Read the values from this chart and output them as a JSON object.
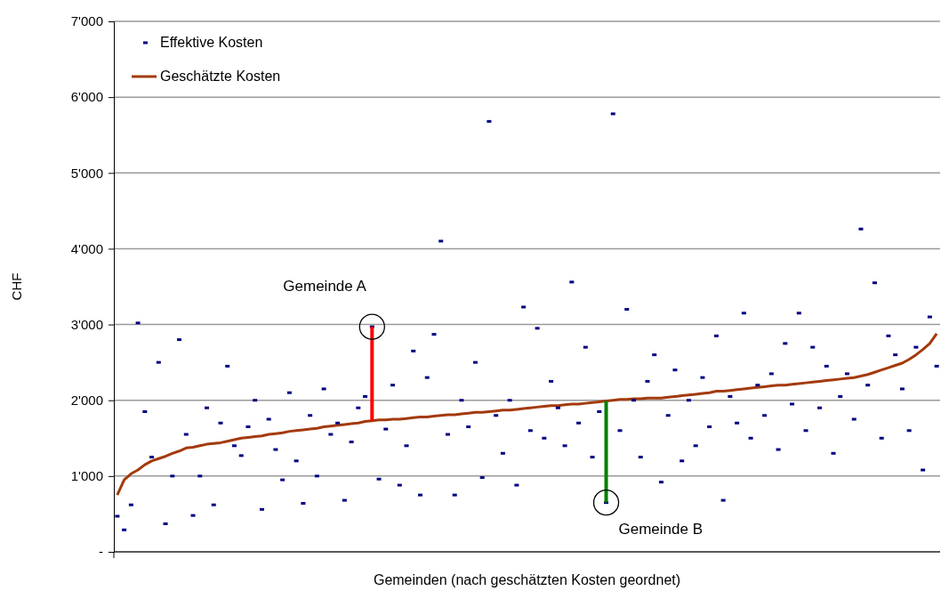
{
  "chart_data": {
    "type": "scatter",
    "xlabel": "Gemeinden (nach geschätzten Kosten geordnet)",
    "ylabel": "CHF",
    "categories": [
      null,
      null,
      null,
      null,
      null,
      null,
      null,
      null,
      null,
      null,
      null,
      null,
      null,
      null,
      null,
      null,
      null,
      null,
      null,
      null,
      null,
      null,
      null,
      null,
      null,
      null,
      null,
      null,
      null,
      null,
      null,
      null,
      null,
      null,
      null,
      null,
      null,
      null,
      null,
      null,
      null,
      null,
      null,
      null,
      null,
      null,
      null,
      null,
      null,
      null,
      null,
      null,
      null,
      null,
      null,
      null,
      null,
      null,
      null,
      null,
      null,
      null,
      null,
      null,
      null,
      null,
      null,
      null,
      null,
      null,
      null,
      null,
      null,
      null,
      null,
      null,
      null,
      null,
      null,
      null,
      null,
      null,
      null,
      null,
      null,
      null,
      null,
      null,
      null,
      null,
      null,
      null,
      null,
      null,
      null,
      null,
      null,
      null,
      null,
      null,
      null,
      null,
      null,
      null,
      null,
      null,
      null,
      null,
      null,
      null,
      null,
      null,
      null,
      null,
      null,
      null,
      null,
      null,
      null,
      null
    ],
    "ylim": [
      0,
      7000
    ],
    "yticks": [
      {
        "value": 0,
        "label": "-"
      },
      {
        "value": 1000,
        "label": "1'000"
      },
      {
        "value": 2000,
        "label": "2'000"
      },
      {
        "value": 3000,
        "label": "3'000"
      },
      {
        "value": 4000,
        "label": "4'000"
      },
      {
        "value": 5000,
        "label": "5'000"
      },
      {
        "value": 6000,
        "label": "6'000"
      },
      {
        "value": 7000,
        "label": "7'000"
      }
    ],
    "grid": "y",
    "legend": "top left",
    "tick_labels": "y",
    "marker": "square",
    "series": [
      {
        "name": "Effektive Kosten",
        "color": "#000080",
        "values": [
          470,
          290,
          620,
          3020,
          1850,
          1250,
          2500,
          370,
          1000,
          2800,
          1550,
          480,
          1000,
          1900,
          620,
          1700,
          2450,
          1400,
          1270,
          1650,
          2000,
          560,
          1750,
          1350,
          950,
          2100,
          1200,
          640,
          1800,
          1000,
          2150,
          1550,
          1700,
          680,
          1450,
          1900,
          2050,
          2970,
          960,
          1620,
          2200,
          880,
          1400,
          2650,
          750,
          2300,
          2870,
          4100,
          1550,
          750,
          2000,
          1650,
          2500,
          980,
          5680,
          1800,
          1300,
          2000,
          880,
          3230,
          1600,
          2950,
          1500,
          2250,
          1900,
          1400,
          3560,
          1700,
          2700,
          1250,
          1850,
          650,
          5780,
          1600,
          3200,
          2000,
          1250,
          2250,
          2600,
          920,
          1800,
          2400,
          1200,
          2000,
          1400,
          2300,
          1650,
          2850,
          680,
          2050,
          1700,
          3150,
          1500,
          2200,
          1800,
          2350,
          1350,
          2750,
          1950,
          3150,
          1600,
          2700,
          1900,
          2450,
          1300,
          2050,
          2350,
          1750,
          4260,
          2200,
          3550,
          1500,
          2850,
          2600,
          2150,
          1600,
          2700,
          1080,
          3100,
          2450
        ]
      },
      {
        "name": "Geschätzte Kosten",
        "type": "line",
        "color": "#a33a0c",
        "marker": "none",
        "line_style": "solid",
        "values": [
          750,
          950,
          1030,
          1080,
          1150,
          1200,
          1230,
          1260,
          1300,
          1330,
          1370,
          1380,
          1400,
          1420,
          1430,
          1440,
          1460,
          1480,
          1500,
          1510,
          1520,
          1530,
          1550,
          1560,
          1570,
          1590,
          1600,
          1610,
          1620,
          1630,
          1650,
          1660,
          1670,
          1680,
          1690,
          1700,
          1720,
          1730,
          1740,
          1740,
          1750,
          1750,
          1760,
          1770,
          1780,
          1780,
          1790,
          1800,
          1810,
          1810,
          1820,
          1830,
          1840,
          1840,
          1850,
          1860,
          1870,
          1870,
          1880,
          1890,
          1900,
          1910,
          1920,
          1930,
          1930,
          1940,
          1950,
          1950,
          1960,
          1970,
          1980,
          1990,
          2000,
          2010,
          2010,
          2020,
          2020,
          2030,
          2030,
          2030,
          2040,
          2050,
          2060,
          2070,
          2080,
          2090,
          2100,
          2120,
          2120,
          2130,
          2140,
          2150,
          2160,
          2170,
          2180,
          2190,
          2200,
          2200,
          2210,
          2220,
          2230,
          2240,
          2250,
          2260,
          2270,
          2280,
          2290,
          2300,
          2320,
          2340,
          2370,
          2400,
          2430,
          2460,
          2490,
          2540,
          2600,
          2670,
          2750,
          2880
        ]
      }
    ],
    "annotations": [
      "Gemeinde A",
      "Gemeinde B"
    ]
  }
}
